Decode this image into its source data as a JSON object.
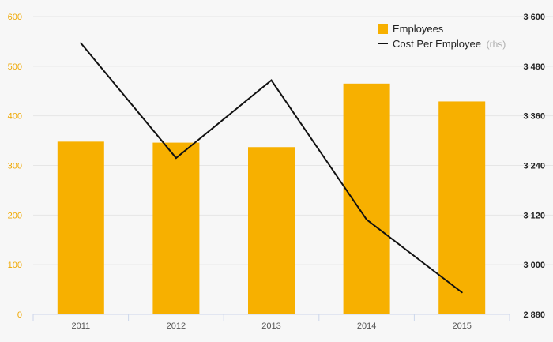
{
  "chart_data": {
    "type": "bar",
    "categories": [
      "2011",
      "2012",
      "2013",
      "2014",
      "2015"
    ],
    "series": [
      {
        "name": "Employees",
        "type": "bar",
        "axis": "left",
        "values": [
          348,
          346,
          337,
          465,
          429
        ]
      },
      {
        "name": "Cost Per Employee",
        "type": "line",
        "axis": "right",
        "values": [
          3536,
          3258,
          3446,
          3109,
          2933
        ]
      }
    ],
    "y_left": {
      "range": [
        0,
        600
      ],
      "ticks": [
        "0",
        "100",
        "200",
        "300",
        "400",
        "500",
        "600"
      ],
      "tick_values": [
        0,
        100,
        200,
        300,
        400,
        500,
        600
      ]
    },
    "y_right": {
      "range": [
        2880,
        3600
      ],
      "ticks": [
        "2 880",
        "3 000",
        "3 120",
        "3 240",
        "3 360",
        "3 480",
        "3 600"
      ],
      "tick_values": [
        2880,
        3000,
        3120,
        3240,
        3360,
        3480,
        3600
      ]
    },
    "legend": {
      "placement": "top-right",
      "rhs_note": "(rhs)"
    },
    "grid": true,
    "colors": {
      "bar": "#f7b000",
      "line": "#111111",
      "grid": "#e6e6e6",
      "left_axis_text": "#f0a800"
    }
  }
}
